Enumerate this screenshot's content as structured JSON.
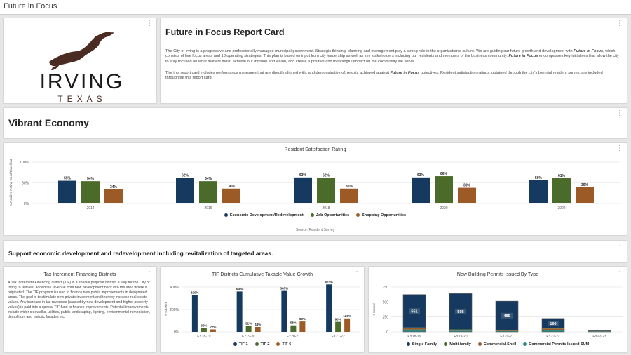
{
  "window": {
    "title": "Future in Focus"
  },
  "logo": {
    "wordmark": "IRVING",
    "state": "TEXAS"
  },
  "report": {
    "title": "Future in Focus Report Card",
    "p1_a": "The City of Irving is a progressive and professionally managed municipal government. Strategic thinking, planning and management play a strong role in the organization's culture. We are guiding our future growth and development with ",
    "p1_b": "Future in Focus",
    "p1_c": ", which consists of five focus areas and 18 operating strategies. This plan is based on input from city leadership as well as key stakeholders including our residents and members of the business community. ",
    "p1_d": "Future in Focus",
    "p1_e": " encompasses key initiatives that allow the city to stay focused on what matters most, achieve our mission and vision, and create a positive and meaningful impact on the community we serve.",
    "p2_a": "The this report card includes performance measures that are directly aligned with, and demonstrative of, results achieved against ",
    "p2_b": "Future in Focus",
    "p2_c": " objectives. Resident satisfaction ratings, obtained through the city's biennial resident survey, are included throughout this report card."
  },
  "section": {
    "title": "Vibrant Economy"
  },
  "strategy": {
    "title": "Support economic development and redevelopment including revitalization of targeted areas."
  },
  "tif_text": {
    "title": "Tax Increment Financing Districts",
    "body": "A Tax Increment Financing district (TIF) is a special purpose district; a way for the City of Irving to reinvest added tax revenue from new development back into the area where it originated. The TIF program is used to finance new public improvements in designated areas. The goal is to stimulate new private investment and thereby increase real estate values. Any increase in tax revenues (caused by new development and higher property values) is paid into a special TIF fund to finance improvements. Potential improvements include wider sidewalks, utilities, public landscaping, lighting, environmental remediation, demolition, and historic facades etc."
  },
  "colors": {
    "navy": "#163a5f",
    "green": "#4a6b2a",
    "orange": "#9c5a26",
    "teal": "#2e8a86",
    "grid": "#dddddd"
  },
  "chart_data": [
    {
      "type": "bar",
      "title": "Resident Satisfaction Rating",
      "ylabel": "% Positive Rating Good/Excellent",
      "ylim": [
        0,
        100
      ],
      "yticks": [
        "0%",
        "50%",
        "100%"
      ],
      "categories": [
        "2014",
        "2016",
        "2018",
        "2020",
        "2022"
      ],
      "series": [
        {
          "name": "Economic Development/Redevelopment",
          "values": [
            55,
            62,
            63,
            63,
            56
          ],
          "labels": [
            "55%",
            "62%",
            "63%",
            "63%",
            "56%"
          ],
          "color": "#163a5f"
        },
        {
          "name": "Job Opportunities",
          "values": [
            54,
            54,
            62,
            66,
            61
          ],
          "labels": [
            "54%",
            "54%",
            "62%",
            "66%",
            "61%"
          ],
          "color": "#4a6b2a"
        },
        {
          "name": "Shopping Opportunities",
          "values": [
            34,
            36,
            36,
            38,
            39
          ],
          "labels": [
            "34%",
            "36%",
            "36%",
            "38%",
            "39%"
          ],
          "color": "#9c5a26"
        }
      ],
      "source": "Source: Resident Survey"
    },
    {
      "type": "bar",
      "title": "TIF Districts Cumulative Taxable Value Growth",
      "ylabel": "% Growth",
      "ylim": [
        0,
        400
      ],
      "yticks": [
        "0%",
        "200%",
        "400%"
      ],
      "categories": [
        "FY18-19",
        "FY19-20",
        "FY20-21",
        "FY21-22"
      ],
      "series": [
        {
          "name": "TIF 1",
          "values": [
            329,
            360,
            365,
            423
          ],
          "labels": [
            "329%",
            "360%",
            "365%",
            "423%"
          ],
          "color": "#163a5f"
        },
        {
          "name": "TIF 2",
          "values": [
            35,
            52,
            58,
            90
          ],
          "labels": [
            "35%",
            "52%",
            "58%",
            "90%"
          ],
          "color": "#4a6b2a"
        },
        {
          "name": "TIF 6",
          "values": [
            22,
            44,
            93,
            120
          ],
          "labels": [
            "22%",
            "44%",
            "93%",
            "120%"
          ],
          "color": "#9c5a26"
        }
      ]
    },
    {
      "type": "bar",
      "stacked": true,
      "title": "New Building Permits Issued By Type",
      "ylabel": "# Issued",
      "ylim": [
        0,
        750
      ],
      "yticks": [
        "0",
        "250",
        "500",
        "750"
      ],
      "categories": [
        "FY18-19",
        "FY19-20",
        "FY20-21",
        "FY21-22",
        "FY22-23"
      ],
      "series": [
        {
          "name": "Single Family",
          "values": [
            551,
            598,
            485,
            166,
            10
          ],
          "labels": [
            "551",
            "598",
            "485",
            "166",
            ""
          ],
          "color": "#163a5f"
        },
        {
          "name": "Multi-family",
          "values": [
            8,
            7,
            4,
            3,
            1
          ],
          "color": "#4a6b2a"
        },
        {
          "name": "Commercial-Shell",
          "values": [
            25,
            15,
            10,
            25,
            5
          ],
          "color": "#9c5a26"
        },
        {
          "name": "Commercial Permits Issued SUM",
          "values": [
            40,
            20,
            15,
            30,
            10
          ],
          "color": "#2e8a86"
        }
      ]
    }
  ]
}
